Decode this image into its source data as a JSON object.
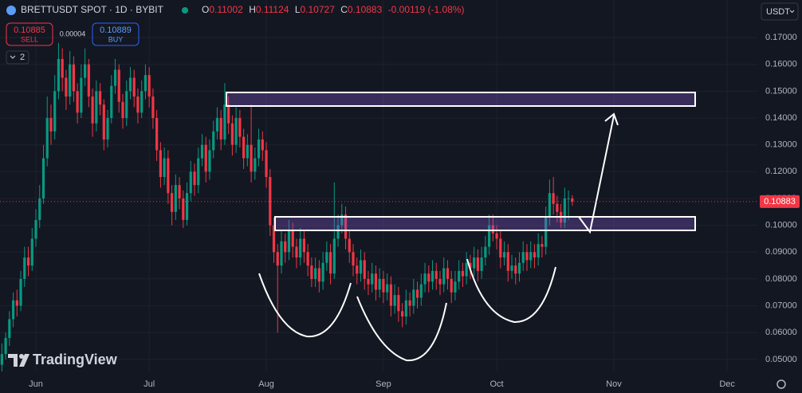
{
  "chart_data": {
    "type": "candlestick",
    "title": "BRETTUSDT SPOT · 1D · BYBIT",
    "ohlc_letters": [
      "O",
      "H",
      "L",
      "C"
    ],
    "change_label": "-0.00119 (-1.08%)",
    "sell": {
      "price": 0.10885,
      "label": "SELL"
    },
    "buy": {
      "price": 0.10889,
      "label": "BUY"
    },
    "spread": 4e-05,
    "indicators_count": 2,
    "currency": "USDT",
    "logo": "TradingView",
    "up_color": "#089981",
    "down_color": "#f23645",
    "grid": true,
    "xlim": [
      -0.5,
      200
    ],
    "xticks": [
      {
        "value": 9,
        "label": "Jun"
      },
      {
        "value": 39,
        "label": "Jul"
      },
      {
        "value": 70,
        "label": "Aug"
      },
      {
        "value": 101,
        "label": "Sep"
      },
      {
        "value": 131,
        "label": "Oct"
      },
      {
        "value": 162,
        "label": "Nov"
      },
      {
        "value": 192,
        "label": "Dec"
      }
    ],
    "ylim": [
      0.0455,
      0.184
    ],
    "yticks": [
      {
        "value": 0.05,
        "label": "0.05000"
      },
      {
        "value": 0.06,
        "label": "0.06000"
      },
      {
        "value": 0.07,
        "label": "0.07000"
      },
      {
        "value": 0.08,
        "label": "0.08000"
      },
      {
        "value": 0.09,
        "label": "0.09000"
      },
      {
        "value": 0.1,
        "label": "0.10000"
      },
      {
        "value": 0.11,
        "label": "0.11000"
      },
      {
        "value": 0.12,
        "label": "0.12000"
      },
      {
        "value": 0.13,
        "label": "0.13000"
      },
      {
        "value": 0.14,
        "label": "0.14000"
      },
      {
        "value": 0.15,
        "label": "0.15000"
      },
      {
        "value": 0.16,
        "label": "0.16000"
      },
      {
        "value": 0.17,
        "label": "0.17000"
      }
    ],
    "ohlc": [
      [
        0.048,
        0.056,
        0.045,
        0.052
      ],
      [
        0.052,
        0.06,
        0.05,
        0.058
      ],
      [
        0.058,
        0.068,
        0.055,
        0.065
      ],
      [
        0.065,
        0.075,
        0.062,
        0.072
      ],
      [
        0.072,
        0.076,
        0.066,
        0.07
      ],
      [
        0.07,
        0.083,
        0.068,
        0.08
      ],
      [
        0.08,
        0.092,
        0.077,
        0.088
      ],
      [
        0.088,
        0.092,
        0.081,
        0.085
      ],
      [
        0.085,
        0.099,
        0.083,
        0.095
      ],
      [
        0.095,
        0.106,
        0.092,
        0.102
      ],
      [
        0.102,
        0.115,
        0.099,
        0.11
      ],
      [
        0.11,
        0.13,
        0.108,
        0.125
      ],
      [
        0.125,
        0.148,
        0.122,
        0.14
      ],
      [
        0.14,
        0.145,
        0.13,
        0.135
      ],
      [
        0.135,
        0.156,
        0.132,
        0.15
      ],
      [
        0.15,
        0.168,
        0.147,
        0.162
      ],
      [
        0.162,
        0.166,
        0.15,
        0.155
      ],
      [
        0.155,
        0.158,
        0.143,
        0.148
      ],
      [
        0.148,
        0.165,
        0.145,
        0.16
      ],
      [
        0.16,
        0.163,
        0.146,
        0.15
      ],
      [
        0.15,
        0.153,
        0.138,
        0.142
      ],
      [
        0.142,
        0.16,
        0.14,
        0.155
      ],
      [
        0.155,
        0.166,
        0.152,
        0.16
      ],
      [
        0.16,
        0.162,
        0.144,
        0.148
      ],
      [
        0.148,
        0.151,
        0.133,
        0.138
      ],
      [
        0.138,
        0.154,
        0.135,
        0.15
      ],
      [
        0.15,
        0.153,
        0.141,
        0.145
      ],
      [
        0.145,
        0.147,
        0.128,
        0.132
      ],
      [
        0.132,
        0.143,
        0.129,
        0.14
      ],
      [
        0.14,
        0.156,
        0.138,
        0.152
      ],
      [
        0.152,
        0.162,
        0.149,
        0.158
      ],
      [
        0.158,
        0.16,
        0.142,
        0.146
      ],
      [
        0.146,
        0.149,
        0.136,
        0.14
      ],
      [
        0.14,
        0.154,
        0.137,
        0.15
      ],
      [
        0.15,
        0.159,
        0.147,
        0.155
      ],
      [
        0.155,
        0.158,
        0.144,
        0.148
      ],
      [
        0.148,
        0.151,
        0.138,
        0.142
      ],
      [
        0.142,
        0.154,
        0.14,
        0.15
      ],
      [
        0.15,
        0.16,
        0.147,
        0.156
      ],
      [
        0.156,
        0.159,
        0.144,
        0.148
      ],
      [
        0.148,
        0.151,
        0.136,
        0.14
      ],
      [
        0.14,
        0.143,
        0.124,
        0.128
      ],
      [
        0.128,
        0.131,
        0.114,
        0.118
      ],
      [
        0.118,
        0.129,
        0.115,
        0.125
      ],
      [
        0.125,
        0.128,
        0.108,
        0.112
      ],
      [
        0.112,
        0.115,
        0.1,
        0.105
      ],
      [
        0.105,
        0.119,
        0.102,
        0.115
      ],
      [
        0.115,
        0.118,
        0.106,
        0.11
      ],
      [
        0.11,
        0.113,
        0.099,
        0.102
      ],
      [
        0.102,
        0.116,
        0.1,
        0.112
      ],
      [
        0.112,
        0.124,
        0.109,
        0.12
      ],
      [
        0.12,
        0.123,
        0.111,
        0.115
      ],
      [
        0.115,
        0.129,
        0.112,
        0.125
      ],
      [
        0.125,
        0.134,
        0.122,
        0.13
      ],
      [
        0.13,
        0.133,
        0.116,
        0.12
      ],
      [
        0.12,
        0.132,
        0.117,
        0.128
      ],
      [
        0.128,
        0.139,
        0.125,
        0.135
      ],
      [
        0.135,
        0.144,
        0.132,
        0.14
      ],
      [
        0.14,
        0.143,
        0.128,
        0.132
      ],
      [
        0.132,
        0.153,
        0.13,
        0.145
      ],
      [
        0.145,
        0.148,
        0.134,
        0.138
      ],
      [
        0.138,
        0.141,
        0.126,
        0.13
      ],
      [
        0.13,
        0.144,
        0.127,
        0.14
      ],
      [
        0.14,
        0.143,
        0.129,
        0.133
      ],
      [
        0.133,
        0.136,
        0.121,
        0.125
      ],
      [
        0.125,
        0.134,
        0.122,
        0.13
      ],
      [
        0.13,
        0.145,
        0.116,
        0.12
      ],
      [
        0.12,
        0.129,
        0.117,
        0.125
      ],
      [
        0.125,
        0.136,
        0.122,
        0.132
      ],
      [
        0.132,
        0.135,
        0.124,
        0.128
      ],
      [
        0.128,
        0.131,
        0.114,
        0.118
      ],
      [
        0.118,
        0.121,
        0.096,
        0.1
      ],
      [
        0.1,
        0.103,
        0.086,
        0.09
      ],
      [
        0.09,
        0.093,
        0.06,
        0.085
      ],
      [
        0.085,
        0.098,
        0.082,
        0.094
      ],
      [
        0.094,
        0.097,
        0.086,
        0.09
      ],
      [
        0.09,
        0.102,
        0.087,
        0.098
      ],
      [
        0.098,
        0.101,
        0.088,
        0.092
      ],
      [
        0.092,
        0.095,
        0.084,
        0.088
      ],
      [
        0.088,
        0.099,
        0.085,
        0.095
      ],
      [
        0.095,
        0.098,
        0.086,
        0.09
      ],
      [
        0.09,
        0.093,
        0.081,
        0.085
      ],
      [
        0.085,
        0.088,
        0.077,
        0.08
      ],
      [
        0.08,
        0.088,
        0.077,
        0.084
      ],
      [
        0.084,
        0.087,
        0.075,
        0.079
      ],
      [
        0.079,
        0.09,
        0.076,
        0.086
      ],
      [
        0.086,
        0.094,
        0.083,
        0.09
      ],
      [
        0.09,
        0.093,
        0.078,
        0.082
      ],
      [
        0.082,
        0.116,
        0.08,
        0.095
      ],
      [
        0.095,
        0.104,
        0.092,
        0.1
      ],
      [
        0.1,
        0.108,
        0.097,
        0.104
      ],
      [
        0.104,
        0.107,
        0.091,
        0.095
      ],
      [
        0.095,
        0.098,
        0.086,
        0.09
      ],
      [
        0.09,
        0.093,
        0.081,
        0.085
      ],
      [
        0.085,
        0.088,
        0.078,
        0.082
      ],
      [
        0.082,
        0.091,
        0.079,
        0.087
      ],
      [
        0.087,
        0.09,
        0.076,
        0.08
      ],
      [
        0.08,
        0.083,
        0.074,
        0.078
      ],
      [
        0.078,
        0.086,
        0.075,
        0.082
      ],
      [
        0.082,
        0.085,
        0.072,
        0.076
      ],
      [
        0.076,
        0.084,
        0.073,
        0.08
      ],
      [
        0.08,
        0.083,
        0.071,
        0.075
      ],
      [
        0.075,
        0.082,
        0.072,
        0.078
      ],
      [
        0.078,
        0.081,
        0.066,
        0.07
      ],
      [
        0.07,
        0.078,
        0.067,
        0.074
      ],
      [
        0.074,
        0.077,
        0.064,
        0.068
      ],
      [
        0.068,
        0.071,
        0.062,
        0.066
      ],
      [
        0.066,
        0.076,
        0.063,
        0.072
      ],
      [
        0.072,
        0.075,
        0.066,
        0.07
      ],
      [
        0.07,
        0.08,
        0.067,
        0.076
      ],
      [
        0.076,
        0.079,
        0.069,
        0.073
      ],
      [
        0.073,
        0.082,
        0.07,
        0.078
      ],
      [
        0.078,
        0.086,
        0.075,
        0.082
      ],
      [
        0.082,
        0.085,
        0.075,
        0.079
      ],
      [
        0.079,
        0.087,
        0.076,
        0.083
      ],
      [
        0.083,
        0.086,
        0.076,
        0.08
      ],
      [
        0.08,
        0.083,
        0.074,
        0.078
      ],
      [
        0.078,
        0.088,
        0.075,
        0.084
      ],
      [
        0.084,
        0.087,
        0.076,
        0.08
      ],
      [
        0.08,
        0.083,
        0.071,
        0.075
      ],
      [
        0.075,
        0.083,
        0.072,
        0.079
      ],
      [
        0.079,
        0.087,
        0.076,
        0.083
      ],
      [
        0.083,
        0.086,
        0.077,
        0.081
      ],
      [
        0.081,
        0.09,
        0.078,
        0.086
      ],
      [
        0.086,
        0.089,
        0.08,
        0.084
      ],
      [
        0.084,
        0.092,
        0.081,
        0.088
      ],
      [
        0.088,
        0.091,
        0.079,
        0.083
      ],
      [
        0.083,
        0.092,
        0.08,
        0.088
      ],
      [
        0.088,
        0.096,
        0.085,
        0.092
      ],
      [
        0.092,
        0.104,
        0.089,
        0.1
      ],
      [
        0.1,
        0.104,
        0.094,
        0.097
      ],
      [
        0.097,
        0.1,
        0.091,
        0.095
      ],
      [
        0.095,
        0.098,
        0.084,
        0.088
      ],
      [
        0.088,
        0.094,
        0.085,
        0.09
      ],
      [
        0.09,
        0.093,
        0.079,
        0.083
      ],
      [
        0.083,
        0.089,
        0.08,
        0.085
      ],
      [
        0.085,
        0.088,
        0.078,
        0.082
      ],
      [
        0.082,
        0.09,
        0.079,
        0.086
      ],
      [
        0.086,
        0.094,
        0.083,
        0.09
      ],
      [
        0.09,
        0.093,
        0.083,
        0.087
      ],
      [
        0.087,
        0.094,
        0.084,
        0.09
      ],
      [
        0.09,
        0.093,
        0.084,
        0.088
      ],
      [
        0.088,
        0.097,
        0.085,
        0.093
      ],
      [
        0.093,
        0.096,
        0.088,
        0.092
      ],
      [
        0.092,
        0.107,
        0.089,
        0.103
      ],
      [
        0.103,
        0.117,
        0.1,
        0.112
      ],
      [
        0.112,
        0.118,
        0.104,
        0.108
      ],
      [
        0.108,
        0.111,
        0.101,
        0.105
      ],
      [
        0.105,
        0.108,
        0.099,
        0.101
      ],
      [
        0.101,
        0.114,
        0.099,
        0.11
      ],
      [
        0.11,
        0.113,
        0.102,
        0.11002
      ],
      [
        0.11002,
        0.11124,
        0.10727,
        0.10883
      ]
    ]
  }
}
